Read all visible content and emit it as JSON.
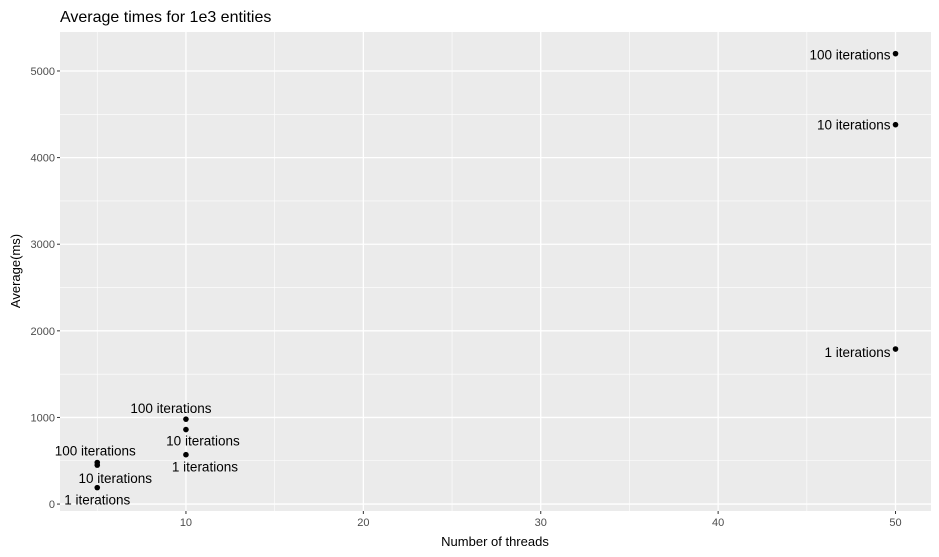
{
  "chart_data": {
    "type": "scatter",
    "title": "Average times for 1e3 entities",
    "xlabel": "Number of threads",
    "ylabel": "Average(ms)",
    "xlim": [
      2.9,
      52.0
    ],
    "ylim": [
      -80,
      5450
    ],
    "x_ticks": [
      10,
      20,
      30,
      40,
      50
    ],
    "y_ticks": [
      0,
      1000,
      2000,
      3000,
      4000,
      5000
    ],
    "x_tick_labels": [
      "10",
      "20",
      "30",
      "40",
      "50"
    ],
    "y_tick_labels": [
      "0",
      "1000",
      "2000",
      "3000",
      "4000",
      "5000"
    ],
    "grid": true,
    "legend": "none",
    "colors": {
      "panel_background": "#ebebeb",
      "grid_major": "#ffffff",
      "point": "#000000"
    },
    "points": [
      {
        "x": 5,
        "y": 190,
        "label": "1 iterations"
      },
      {
        "x": 5,
        "y": 450,
        "label": "10 iterations"
      },
      {
        "x": 5,
        "y": 480,
        "label": "100 iterations"
      },
      {
        "x": 10,
        "y": 570,
        "label": "1 iterations"
      },
      {
        "x": 10,
        "y": 860,
        "label": "10 iterations"
      },
      {
        "x": 10,
        "y": 980,
        "label": "100 iterations"
      },
      {
        "x": 50,
        "y": 1790,
        "label": "1 iterations"
      },
      {
        "x": 50,
        "y": 4380,
        "label": "10 iterations"
      },
      {
        "x": 50,
        "y": 5200,
        "label": "100 iterations"
      }
    ]
  }
}
